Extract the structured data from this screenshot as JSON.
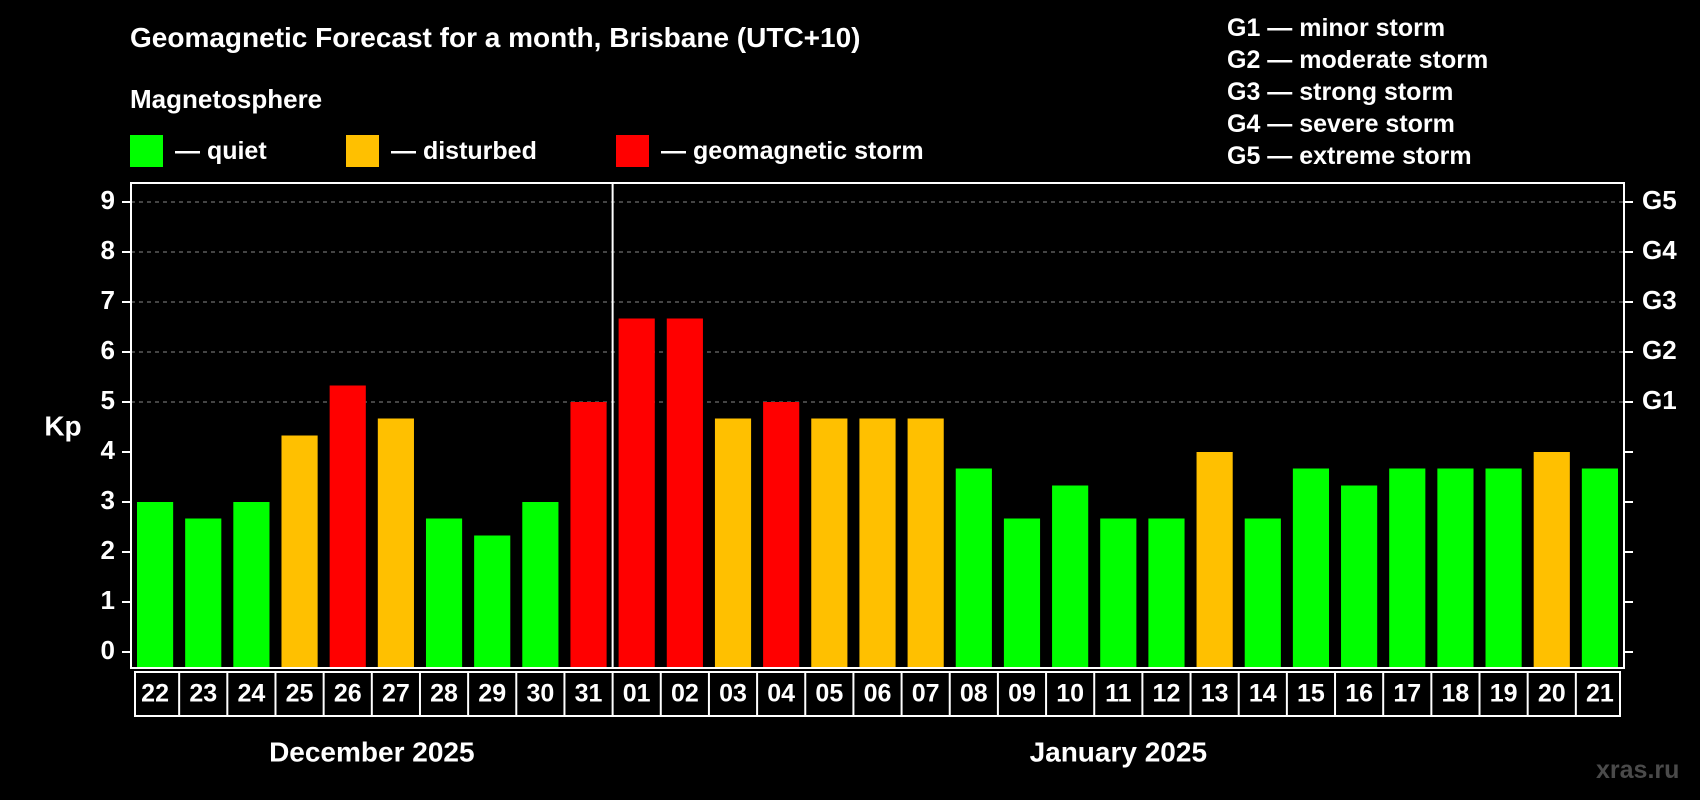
{
  "title": "Geomagnetic Forecast for a month, Brisbane (UTC+10)",
  "magnetosphere_label": "Magnetosphere",
  "legend": [
    {
      "label": "— quiet",
      "color": "#00ff00"
    },
    {
      "label": "— disturbed",
      "color": "#ffc000"
    },
    {
      "label": "— geomagnetic storm",
      "color": "#ff0000"
    }
  ],
  "g_scale": [
    "G1 — minor storm",
    "G2 — moderate storm",
    "G3 — strong storm",
    "G4 — severe storm",
    "G5 — extreme storm"
  ],
  "watermark": "xras.ru",
  "colors": {
    "quiet": "#00ff00",
    "disturbed": "#ffc000",
    "storm": "#ff0000",
    "grid": "#888888",
    "axis": "#ffffff"
  },
  "chart_data": {
    "type": "bar",
    "ylabel": "Kp",
    "ylim": [
      0,
      9
    ],
    "yticks": [
      "0",
      "1",
      "2",
      "3",
      "4",
      "5",
      "6",
      "7",
      "8",
      "9"
    ],
    "right_ticks": [
      {
        "value": 5,
        "label": "G1"
      },
      {
        "value": 6,
        "label": "G2"
      },
      {
        "value": 7,
        "label": "G3"
      },
      {
        "value": 8,
        "label": "G4"
      },
      {
        "value": 9,
        "label": "G5"
      }
    ],
    "month_labels": [
      "December 2025",
      "January 2025"
    ],
    "month_split_after_index": 9,
    "categories": [
      "22",
      "23",
      "24",
      "25",
      "26",
      "27",
      "28",
      "29",
      "30",
      "31",
      "01",
      "02",
      "03",
      "04",
      "05",
      "06",
      "07",
      "08",
      "09",
      "10",
      "11",
      "12",
      "13",
      "14",
      "15",
      "16",
      "17",
      "18",
      "19",
      "20",
      "21"
    ],
    "values": [
      3.0,
      2.67,
      3.0,
      4.33,
      5.33,
      4.67,
      2.67,
      2.33,
      3.0,
      5.0,
      6.67,
      6.67,
      4.67,
      5.0,
      4.67,
      4.67,
      4.67,
      3.67,
      2.67,
      3.33,
      2.67,
      2.67,
      4.0,
      2.67,
      3.67,
      3.33,
      3.67,
      3.67,
      3.67,
      4.0,
      3.67
    ],
    "levels": [
      "quiet",
      "quiet",
      "quiet",
      "disturbed",
      "storm",
      "disturbed",
      "quiet",
      "quiet",
      "quiet",
      "storm",
      "storm",
      "storm",
      "disturbed",
      "storm",
      "disturbed",
      "disturbed",
      "disturbed",
      "quiet",
      "quiet",
      "quiet",
      "quiet",
      "quiet",
      "disturbed",
      "quiet",
      "quiet",
      "quiet",
      "quiet",
      "quiet",
      "quiet",
      "disturbed",
      "quiet"
    ]
  }
}
